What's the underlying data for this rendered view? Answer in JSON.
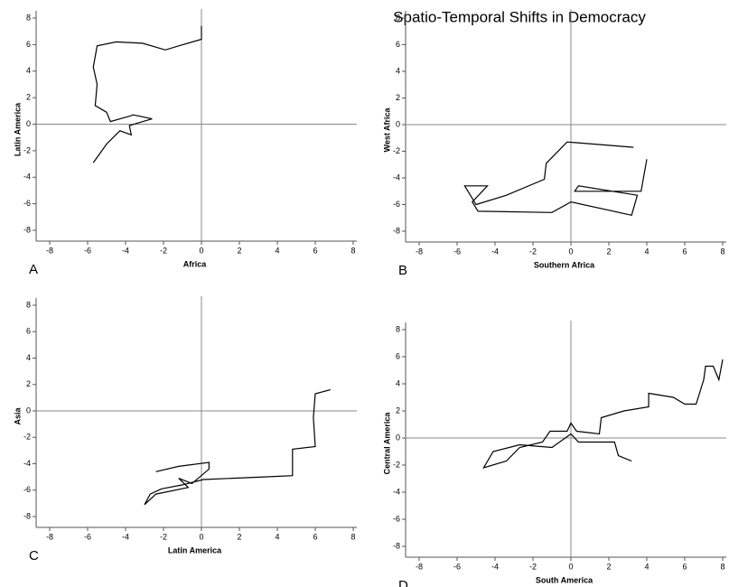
{
  "title": "Spatio-Temporal Shifts in Democracy",
  "chart_data": [
    {
      "type": "line",
      "label": "A",
      "xlabel": "Africa",
      "ylabel": "Latin America",
      "xlim": [
        -8,
        8
      ],
      "ylim": [
        -8,
        8
      ],
      "xticks": [
        -8,
        -6,
        -4,
        -2,
        0,
        2,
        4,
        6,
        8
      ],
      "yticks": [
        -8,
        -6,
        -4,
        -2,
        0,
        2,
        4,
        6,
        8
      ],
      "color": "#000000",
      "x": [
        0,
        0,
        -1.2,
        -1.9,
        -3.1,
        -4.5,
        -5.5,
        -5.7,
        -5.5,
        -5.6,
        -5.0,
        -4.8,
        -3.8,
        -3.6,
        -2.6,
        -3.8,
        -3.7,
        -4.3,
        -5.0,
        -5.7
      ],
      "values": [
        7.4,
        6.4,
        5.9,
        5.6,
        6.1,
        6.2,
        5.9,
        4.3,
        3.0,
        1.4,
        0.9,
        0.2,
        0.6,
        0.7,
        0.4,
        -0.1,
        -0.8,
        -0.5,
        -1.5,
        -2.9
      ]
    },
    {
      "type": "line",
      "label": "B",
      "xlabel": "Southern Africa",
      "ylabel": "West Africa",
      "xlim": [
        -8,
        8
      ],
      "ylim": [
        -8,
        8
      ],
      "xticks": [
        -8,
        -6,
        -4,
        -2,
        0,
        2,
        4,
        6,
        8
      ],
      "yticks": [
        -8,
        -6,
        -4,
        -2,
        0,
        2,
        4,
        6,
        8
      ],
      "color": "#000000",
      "x": [
        3.3,
        -0.2,
        -1.3,
        -1.4,
        -3.4,
        -5.0,
        -5.6,
        -4.4,
        -5.2,
        -4.9,
        -1.0,
        0,
        3.2,
        3.5,
        0.4,
        0.2,
        3.7,
        4.0
      ],
      "values": [
        -1.7,
        -1.3,
        -2.9,
        -4.1,
        -5.3,
        -6.0,
        -4.6,
        -4.6,
        -5.8,
        -6.5,
        -6.6,
        -5.8,
        -6.8,
        -5.3,
        -4.6,
        -5.0,
        -5.0,
        -2.6
      ]
    },
    {
      "type": "line",
      "label": "C",
      "xlabel": "Latin America",
      "ylabel": "Asia",
      "xlim": [
        -8,
        8
      ],
      "ylim": [
        -8,
        8
      ],
      "xticks": [
        -8,
        -6,
        -4,
        -2,
        0,
        2,
        4,
        6,
        8
      ],
      "yticks": [
        -8,
        -6,
        -4,
        -2,
        0,
        2,
        4,
        6,
        8
      ],
      "color": "#000000",
      "x": [
        6.8,
        6.0,
        5.9,
        6.0,
        4.8,
        4.8,
        3.3,
        0.1,
        -1.0,
        -2.1,
        -2.7,
        -3.0,
        -2.4,
        -0.7,
        -1.2,
        -0.5,
        0.4,
        0.4,
        -1.2,
        -2.4
      ],
      "values": [
        1.6,
        1.3,
        -0.5,
        -2.7,
        -2.9,
        -4.9,
        -5.0,
        -5.2,
        -5.6,
        -5.9,
        -6.3,
        -7.1,
        -6.3,
        -5.8,
        -5.1,
        -5.5,
        -4.4,
        -3.9,
        -4.2,
        -4.6
      ]
    },
    {
      "type": "line",
      "label": "D",
      "xlabel": "South America",
      "ylabel": "Central America",
      "xlim": [
        -8,
        8
      ],
      "ylim": [
        -8,
        8
      ],
      "xticks": [
        -8,
        -6,
        -4,
        -2,
        0,
        2,
        4,
        6,
        8
      ],
      "yticks": [
        -8,
        -6,
        -4,
        -2,
        0,
        2,
        4,
        6,
        8
      ],
      "color": "#000000",
      "x": [
        8.0,
        7.8,
        7.5,
        7.1,
        7.0,
        6.6,
        6.0,
        5.4,
        4.1,
        4.1,
        2.8,
        1.6,
        1.5,
        0.3,
        0,
        -0.2,
        -1.1,
        -1.5,
        -2.7,
        -3.4,
        -4.6,
        -4.1,
        -2.7,
        -1.0,
        0,
        0.4,
        2.3,
        2.5,
        3.2
      ],
      "values": [
        5.8,
        4.3,
        5.3,
        5.3,
        4.3,
        2.5,
        2.5,
        3.0,
        3.3,
        2.3,
        2.0,
        1.5,
        0.3,
        0.5,
        1.1,
        0.5,
        0.5,
        -0.3,
        -0.7,
        -1.7,
        -2.2,
        -1.0,
        -0.5,
        -0.7,
        0.3,
        -0.3,
        -0.3,
        -1.3,
        -1.7
      ]
    }
  ]
}
